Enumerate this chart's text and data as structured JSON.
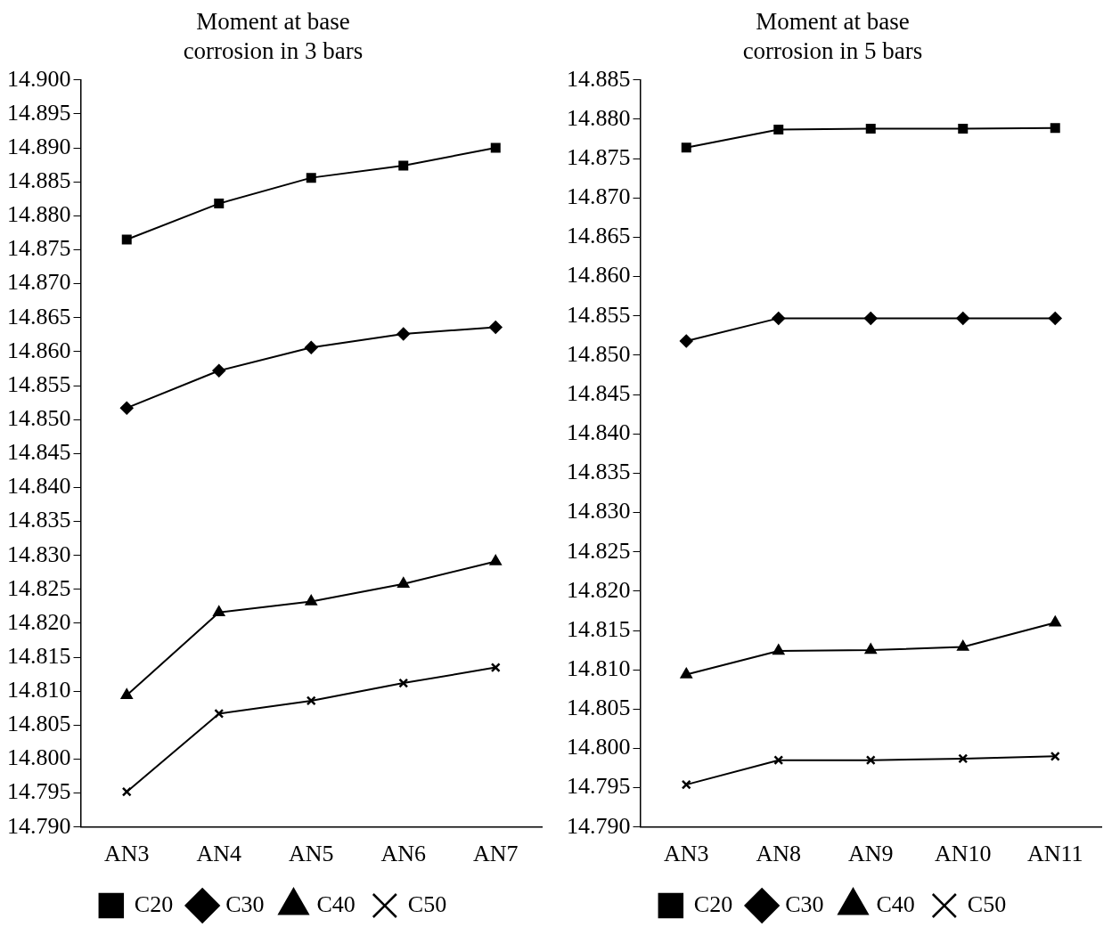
{
  "chart_data": [
    {
      "type": "line",
      "title": "Moment at base corrosion in 3 bars",
      "categories": [
        "AN3",
        "AN4",
        "AN5",
        "AN6",
        "AN7"
      ],
      "series": [
        {
          "name": "C20",
          "color": "#000000",
          "marker": "square",
          "values": [
            14.8765,
            14.8818,
            14.8856,
            14.8874,
            14.89
          ]
        },
        {
          "name": "C30",
          "color": "#000000",
          "marker": "diamond",
          "values": [
            14.8517,
            14.8572,
            14.8606,
            14.8626,
            14.8636
          ]
        },
        {
          "name": "C40",
          "color": "#000000",
          "marker": "triangle",
          "values": [
            14.8094,
            14.8216,
            14.8232,
            14.8258,
            14.8291
          ]
        },
        {
          "name": "C50",
          "color": "#000000",
          "marker": "cross",
          "values": [
            14.7952,
            14.8067,
            14.8086,
            14.8112,
            14.8135
          ]
        }
      ],
      "ylim": [
        14.79,
        14.9
      ],
      "yticks": [
        {
          "value": 14.79,
          "label": "14.790"
        },
        {
          "value": 14.795,
          "label": "14.795"
        },
        {
          "value": 14.8,
          "label": "14.800"
        },
        {
          "value": 14.805,
          "label": "14.805"
        },
        {
          "value": 14.81,
          "label": "14.810"
        },
        {
          "value": 14.815,
          "label": "14.815"
        },
        {
          "value": 14.82,
          "label": "14.820"
        },
        {
          "value": 14.825,
          "label": "14.825"
        },
        {
          "value": 14.83,
          "label": "14.830"
        },
        {
          "value": 14.835,
          "label": "14.835"
        },
        {
          "value": 14.84,
          "label": "14.840"
        },
        {
          "value": 14.845,
          "label": "14.845"
        },
        {
          "value": 14.85,
          "label": "14.850"
        },
        {
          "value": 14.855,
          "label": "14.855"
        },
        {
          "value": 14.86,
          "label": "14.860"
        },
        {
          "value": 14.865,
          "label": "14.865"
        },
        {
          "value": 14.87,
          "label": "14.870"
        },
        {
          "value": 14.875,
          "label": "14.875"
        },
        {
          "value": 14.88,
          "label": "14.880"
        },
        {
          "value": 14.885,
          "label": "14.885"
        },
        {
          "value": 14.89,
          "label": "14.890"
        },
        {
          "value": 14.895,
          "label": "14.895"
        },
        {
          "value": 14.9,
          "label": "14.900"
        }
      ],
      "grid": false,
      "legend": "bottom",
      "line_style": "solid"
    },
    {
      "type": "line",
      "title": "Moment at base corrosion in 5 bars",
      "categories": [
        "AN3",
        "AN8",
        "AN9",
        "AN10",
        "AN11"
      ],
      "series": [
        {
          "name": "C20",
          "color": "#000000",
          "marker": "square",
          "values": [
            14.8764,
            14.8787,
            14.8788,
            14.8788,
            14.8789
          ]
        },
        {
          "name": "C30",
          "color": "#000000",
          "marker": "diamond",
          "values": [
            14.8518,
            14.8547,
            14.8547,
            14.8547,
            14.8547
          ]
        },
        {
          "name": "C40",
          "color": "#000000",
          "marker": "triangle",
          "values": [
            14.8094,
            14.8124,
            14.8125,
            14.8129,
            14.816
          ]
        },
        {
          "name": "C50",
          "color": "#000000",
          "marker": "cross",
          "values": [
            14.7954,
            14.7985,
            14.7985,
            14.7987,
            14.799
          ]
        }
      ],
      "ylim": [
        14.79,
        14.885
      ],
      "yticks": [
        {
          "value": 14.79,
          "label": "14.790"
        },
        {
          "value": 14.795,
          "label": "14.795"
        },
        {
          "value": 14.8,
          "label": "14.800"
        },
        {
          "value": 14.805,
          "label": "14.805"
        },
        {
          "value": 14.81,
          "label": "14.810"
        },
        {
          "value": 14.815,
          "label": "14.815"
        },
        {
          "value": 14.82,
          "label": "14.820"
        },
        {
          "value": 14.825,
          "label": "14.825"
        },
        {
          "value": 14.83,
          "label": "14.830"
        },
        {
          "value": 14.835,
          "label": "14.835"
        },
        {
          "value": 14.84,
          "label": "14.840"
        },
        {
          "value": 14.845,
          "label": "14.845"
        },
        {
          "value": 14.85,
          "label": "14.850"
        },
        {
          "value": 14.855,
          "label": "14.855"
        },
        {
          "value": 14.86,
          "label": "14.860"
        },
        {
          "value": 14.865,
          "label": "14.865"
        },
        {
          "value": 14.87,
          "label": "14.870"
        },
        {
          "value": 14.875,
          "label": "14.875"
        },
        {
          "value": 14.88,
          "label": "14.880"
        },
        {
          "value": 14.885,
          "label": "14.885"
        }
      ],
      "grid": false,
      "legend": "bottom",
      "line_style": "solid"
    }
  ]
}
